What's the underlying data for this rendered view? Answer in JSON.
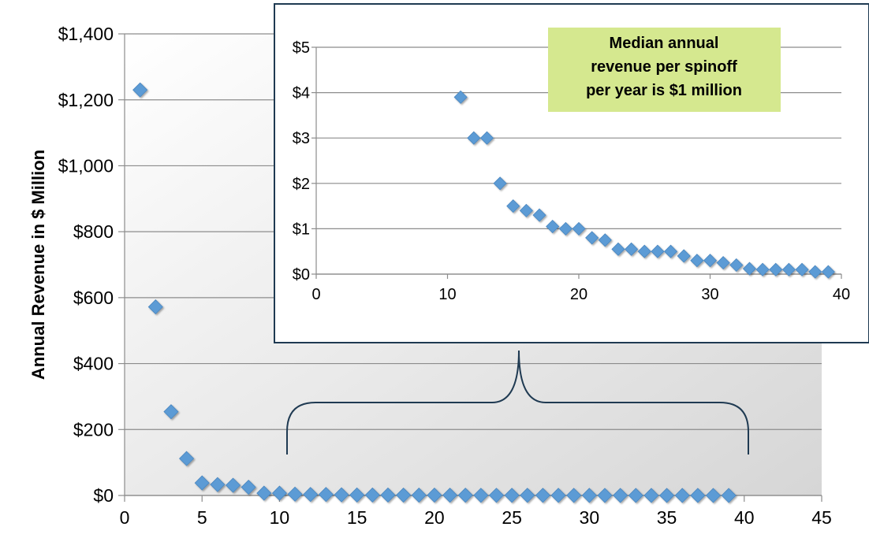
{
  "chart_data": [
    {
      "type": "scatter",
      "ylabel": "Annual Revenue in $ Million",
      "xlim": [
        0,
        45
      ],
      "ylim": [
        0,
        1400
      ],
      "x_ticks": [
        "0",
        "5",
        "10",
        "15",
        "20",
        "25",
        "30",
        "35",
        "40",
        "45"
      ],
      "y_ticks": [
        "$0",
        "$200",
        "$400",
        "$600",
        "$800",
        "$1,000",
        "$1,200",
        "$1,400"
      ],
      "grid": true,
      "marker_color": "#5b9bd5",
      "x": [
        1,
        2,
        3,
        4,
        5,
        6,
        7,
        8,
        9,
        10,
        11,
        12,
        13,
        14,
        15,
        16,
        17,
        18,
        19,
        20,
        21,
        22,
        23,
        24,
        25,
        26,
        27,
        28,
        29,
        30,
        31,
        32,
        33,
        34,
        35,
        36,
        37,
        38,
        39
      ],
      "y": [
        1230,
        572,
        254,
        112,
        38,
        33,
        31,
        25,
        7,
        7,
        3.9,
        3,
        3,
        2,
        1.5,
        1.4,
        1.3,
        1.05,
        1,
        1,
        0.8,
        0.75,
        0.55,
        0.55,
        0.5,
        0.5,
        0.5,
        0.4,
        0.3,
        0.3,
        0.25,
        0.2,
        0.12,
        0.1,
        0.1,
        0.1,
        0.1,
        0.05,
        0.05
      ]
    },
    {
      "type": "scatter",
      "xlim": [
        0,
        40
      ],
      "ylim": [
        0,
        5
      ],
      "x_ticks": [
        "0",
        "10",
        "20",
        "30",
        "40"
      ],
      "y_ticks": [
        "$0",
        "$1",
        "$2",
        "$3",
        "$4",
        "$5"
      ],
      "grid": true,
      "marker_color": "#5b9bd5",
      "x": [
        11,
        12,
        13,
        14,
        15,
        16,
        17,
        18,
        19,
        20,
        21,
        22,
        23,
        24,
        25,
        26,
        27,
        28,
        29,
        30,
        31,
        32,
        33,
        34,
        35,
        36,
        37,
        38,
        39
      ],
      "y": [
        3.9,
        3,
        3,
        2,
        1.5,
        1.4,
        1.3,
        1.05,
        1,
        1,
        0.8,
        0.75,
        0.55,
        0.55,
        0.5,
        0.5,
        0.5,
        0.4,
        0.3,
        0.3,
        0.25,
        0.2,
        0.12,
        0.1,
        0.1,
        0.1,
        0.1,
        0.05,
        0.05
      ],
      "annotation": {
        "lines": [
          "Median annual",
          "revenue per spinoff",
          "per year is $1 million"
        ],
        "background": "#d5e88f"
      }
    }
  ]
}
